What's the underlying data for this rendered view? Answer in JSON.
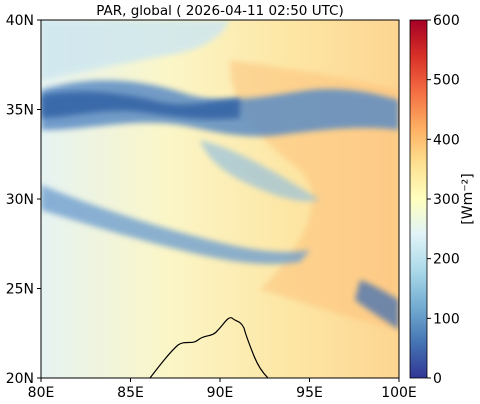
{
  "figure": {
    "title": "PAR, global ( 2026-04-11 02:50 UTC)"
  },
  "map": {
    "projection": "lat-lon",
    "lon_range": [
      80,
      100
    ],
    "lat_range": [
      20,
      40
    ],
    "x_ticks": [
      {
        "value": 80,
        "label": "80E"
      },
      {
        "value": 85,
        "label": "85E"
      },
      {
        "value": 90,
        "label": "90E"
      },
      {
        "value": 95,
        "label": "95E"
      },
      {
        "value": 100,
        "label": "100E"
      }
    ],
    "y_ticks": [
      {
        "value": 20,
        "label": "20N"
      },
      {
        "value": 25,
        "label": "25N"
      },
      {
        "value": 30,
        "label": "30N"
      },
      {
        "value": 35,
        "label": "35N"
      },
      {
        "value": 40,
        "label": "40N"
      }
    ],
    "coastline_color": "#000000"
  },
  "colorbar": {
    "label": "[Wm⁻²]",
    "range": [
      0,
      600
    ],
    "colormap": "RdYlBu_r",
    "ticks": [
      {
        "value": 0,
        "label": "0"
      },
      {
        "value": 100,
        "label": "100"
      },
      {
        "value": 200,
        "label": "200"
      },
      {
        "value": 300,
        "label": "300"
      },
      {
        "value": 400,
        "label": "400"
      },
      {
        "value": 500,
        "label": "500"
      },
      {
        "value": 600,
        "label": "600"
      }
    ],
    "stops": [
      "#313695",
      "#4575b4",
      "#74add1",
      "#abd9e9",
      "#e0f3f8",
      "#ffffbf",
      "#fee090",
      "#fdae61",
      "#f46d43",
      "#d73027",
      "#a50026"
    ]
  }
}
